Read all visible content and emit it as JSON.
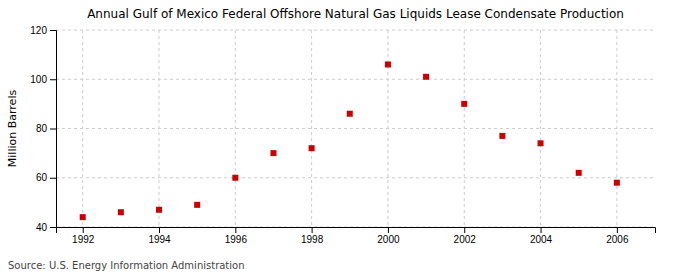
{
  "chart_data": {
    "type": "scatter",
    "title": "Annual Gulf of Mexico Federal Offshore Natural Gas Liquids Lease Condensate Production",
    "ylabel": "Million Barrels",
    "source": "Source: U.S. Energy Information Administration",
    "x": [
      1992,
      1993,
      1994,
      1995,
      1996,
      1997,
      1998,
      1999,
      2000,
      2001,
      2002,
      2003,
      2004,
      2005,
      2006
    ],
    "values": [
      44,
      46,
      47,
      49,
      60,
      70,
      72,
      86,
      106,
      101,
      90,
      77,
      74,
      62,
      58
    ],
    "color": "#cc0000",
    "marker": "square",
    "xlim": [
      1991.3,
      2007.0
    ],
    "ylim": [
      40,
      120
    ],
    "xticks": [
      1992,
      1994,
      1996,
      1998,
      2000,
      2002,
      2004,
      2006
    ],
    "yticks": [
      40,
      60,
      80,
      100,
      120
    ],
    "grid": true
  }
}
